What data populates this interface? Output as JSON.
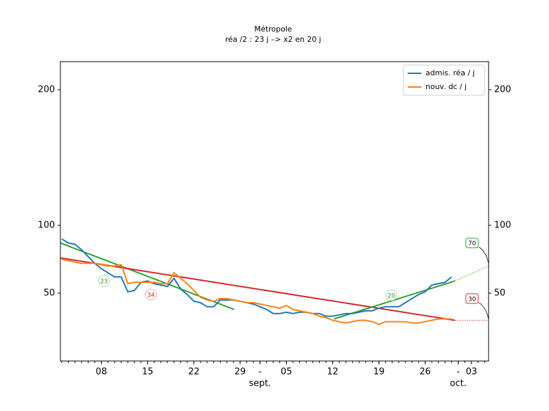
{
  "chart_data": {
    "type": "line",
    "title": "Métropole",
    "subtitle": "réa /2 : 23 j –> x2 en 20 j",
    "xlim": [
      1.8,
      66.6
    ],
    "xticks": [
      {
        "value": 8,
        "label": "08"
      },
      {
        "value": 15,
        "label": "15"
      },
      {
        "value": 22,
        "label": "22"
      },
      {
        "value": 29,
        "label": "29"
      },
      {
        "value": 32,
        "label": "-"
      },
      {
        "value": 36,
        "label": "05"
      },
      {
        "value": 43,
        "label": "12"
      },
      {
        "value": 50,
        "label": "19"
      },
      {
        "value": 57,
        "label": "26"
      },
      {
        "value": 62,
        "label": "-"
      },
      {
        "value": 64,
        "label": "03"
      }
    ],
    "month_labels": [
      {
        "value": 32,
        "label": "sept."
      },
      {
        "value": 62,
        "label": "oct."
      }
    ],
    "ylim": [
      0,
      220.7
    ],
    "yticks": [
      50,
      100,
      200
    ],
    "legend": "upper right",
    "x": [
      2,
      3,
      4,
      5,
      6,
      7,
      8,
      9,
      10,
      11,
      12,
      13,
      14,
      15,
      16,
      17,
      18,
      19,
      20,
      21,
      22,
      23,
      24,
      25,
      26,
      27,
      28,
      29,
      30,
      31,
      32,
      33,
      34,
      35,
      36,
      37,
      38,
      39,
      40,
      41,
      42,
      43,
      44,
      45,
      46,
      47,
      48,
      49,
      50,
      51,
      52,
      53,
      54,
      55,
      56,
      57,
      58,
      59,
      60,
      61
    ],
    "series": [
      {
        "name": "admis. réa / j",
        "color": "#1f77b4",
        "values": [
          90,
          87,
          86,
          82,
          77,
          72,
          68,
          65,
          62,
          62,
          51,
          52,
          58,
          59,
          57,
          56,
          55,
          61,
          53,
          49,
          44,
          43,
          40,
          40,
          45,
          45,
          45,
          44,
          43,
          42,
          40,
          38,
          35,
          35,
          36,
          35,
          36,
          36,
          35,
          35,
          33,
          33,
          34,
          35,
          35,
          36,
          37,
          37,
          39,
          40,
          40,
          40,
          43,
          46,
          49,
          51,
          56,
          57,
          58,
          62
        ]
      },
      {
        "name": "nouv. dc / j",
        "color": "#ff7f0e",
        "values": [
          75,
          74,
          73,
          72,
          72,
          72,
          71,
          70,
          70,
          71,
          57,
          58,
          58,
          58,
          58,
          57,
          57,
          65,
          61,
          57,
          52,
          47,
          45,
          44,
          46,
          46,
          45,
          44,
          43,
          43,
          42,
          41,
          40,
          39,
          41,
          38,
          37,
          36,
          35,
          33,
          32,
          30,
          29,
          28,
          29,
          30,
          30,
          29,
          27,
          29,
          29,
          29,
          29,
          28,
          28,
          29,
          30,
          31,
          31,
          31
        ]
      }
    ],
    "trends": [
      {
        "color": "#2ca02c",
        "style": "solid",
        "x": [
          1.8,
          28.1
        ],
        "values": [
          87,
          38
        ]
      },
      {
        "color": "#d62728",
        "style": "solid",
        "x": [
          1.8,
          61.5
        ],
        "values": [
          76,
          30
        ]
      },
      {
        "color": "#2ca02c",
        "style": "solid",
        "x": [
          43.2,
          61.5
        ],
        "values": [
          31,
          59
        ]
      },
      {
        "color": "#2ca02c",
        "style": "dotted",
        "x": [
          61.5,
          66.6
        ],
        "values": [
          59,
          70
        ]
      },
      {
        "color": "#d62728",
        "style": "dotted",
        "x": [
          61.5,
          66.6
        ],
        "values": [
          30,
          30
        ]
      }
    ],
    "annotations": [
      {
        "text": "23",
        "x": 8.4,
        "y": 59,
        "color": "#2ca02c",
        "shape": "circle"
      },
      {
        "text": "34",
        "x": 15.5,
        "y": 49,
        "color": "#d62728",
        "shape": "circle"
      },
      {
        "text": "20",
        "x": 51.9,
        "y": 48.5,
        "color": "#2ca02c",
        "shape": "circle"
      },
      {
        "text": "70",
        "x": 64.1,
        "y": 87,
        "color": "#2ca02c",
        "shape": "box"
      },
      {
        "text": "30",
        "x": 64.1,
        "y": 46,
        "color": "#d62728",
        "shape": "box"
      }
    ]
  }
}
